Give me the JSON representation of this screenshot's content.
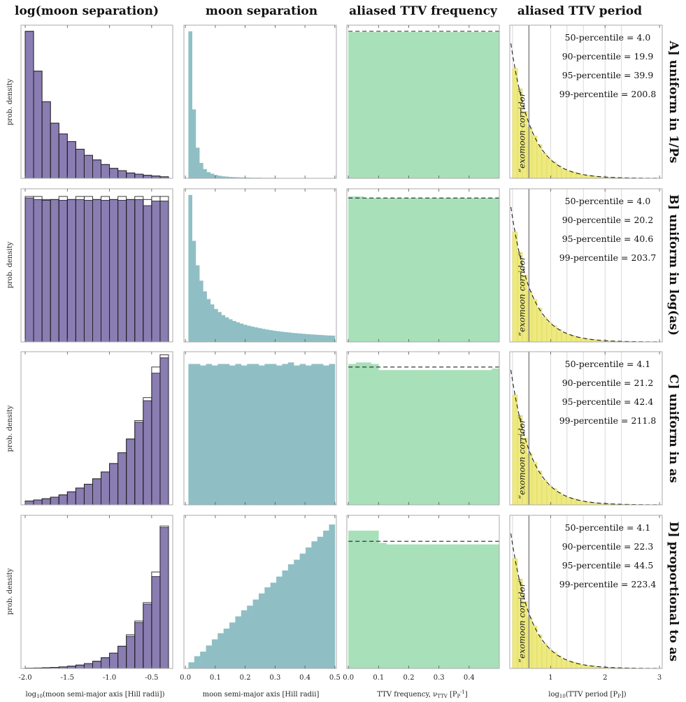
{
  "column_titles": [
    "log(moon separation)",
    "moon separation",
    "aliased TTV frequency",
    "aliased TTV period"
  ],
  "row_labels": [
    "A] uniform in 1/Ps",
    "B] uniform in log(as)",
    "C] uniform in as",
    "D] proportional to as"
  ],
  "ylabel": "prob. density",
  "corridor_label": "“exomoon corridor”",
  "x_axis_labels": [
    "log10(moon semi-major axis [Hill radii])",
    "moon semi-major axis [Hill radii]",
    "TTV frequency, vTTV [PP-1]",
    "log10(TTV period [PP])"
  ],
  "colors": {
    "col1": "#8a7db2",
    "col1_edge": "#2e2742",
    "col2": "#8fbfc4",
    "col3": "#a8e0b9",
    "col4": "#eeea7e",
    "frame": "#aaaaaa",
    "grid": "#d8d8d8"
  },
  "chart_data": [
    {
      "type": "bar",
      "title": "log(moon separation)",
      "xlabel": "log10(moon semi-major axis [Hill radii])",
      "ylabel": "prob. density",
      "xlim": [
        -2.05,
        -0.25
      ],
      "xticks": [
        -2.0,
        -1.5,
        -1.0,
        -0.5
      ],
      "tick_labels": [
        "-2.0",
        "-1.5",
        "-1.0",
        "-0.5"
      ],
      "bin_edges": [
        -2.0,
        -1.9,
        -1.8,
        -1.7,
        -1.6,
        -1.5,
        -1.4,
        -1.3,
        -1.2,
        -1.1,
        -1.0,
        -0.9,
        -0.8,
        -0.7,
        -0.6,
        -0.5,
        -0.4,
        -0.3
      ],
      "series": [
        {
          "name": "A] uniform in 1/Ps",
          "ylim": [
            0,
            1.0
          ],
          "values": [
            0.96,
            0.7,
            0.5,
            0.36,
            0.29,
            0.24,
            0.19,
            0.15,
            0.12,
            0.09,
            0.065,
            0.05,
            0.035,
            0.027,
            0.02,
            0.015,
            0.01
          ],
          "outline": [
            0.96,
            0.7,
            0.5,
            0.36,
            0.29,
            0.24,
            0.19,
            0.15,
            0.12,
            0.09,
            0.065,
            0.05,
            0.035,
            0.027,
            0.02,
            0.015,
            0.01
          ]
        },
        {
          "name": "B] uniform in log(as)",
          "ylim": [
            0,
            1.0
          ],
          "values": [
            0.94,
            0.93,
            0.925,
            0.93,
            0.925,
            0.93,
            0.93,
            0.925,
            0.93,
            0.925,
            0.93,
            0.925,
            0.93,
            0.93,
            0.89,
            0.92,
            0.92
          ],
          "outline": [
            0.95,
            0.95,
            0.93,
            0.93,
            0.95,
            0.93,
            0.95,
            0.95,
            0.93,
            0.95,
            0.93,
            0.95,
            0.93,
            0.95,
            0.93,
            0.95,
            0.95
          ]
        },
        {
          "name": "C] uniform in as",
          "ylim": [
            0,
            1.0
          ],
          "values": [
            0.025,
            0.032,
            0.04,
            0.05,
            0.065,
            0.085,
            0.11,
            0.135,
            0.17,
            0.215,
            0.27,
            0.34,
            0.43,
            0.54,
            0.68,
            0.86,
            0.96
          ],
          "outline": [
            0.025,
            0.032,
            0.04,
            0.05,
            0.065,
            0.085,
            0.11,
            0.135,
            0.17,
            0.215,
            0.27,
            0.34,
            0.43,
            0.55,
            0.7,
            0.9,
            0.98
          ]
        },
        {
          "name": "D] proportional to as",
          "ylim": [
            0,
            1.0
          ],
          "values": [
            0.002,
            0.003,
            0.005,
            0.007,
            0.01,
            0.015,
            0.022,
            0.032,
            0.047,
            0.07,
            0.1,
            0.145,
            0.21,
            0.3,
            0.42,
            0.6,
            0.92
          ],
          "outline": [
            0.002,
            0.003,
            0.005,
            0.007,
            0.01,
            0.015,
            0.022,
            0.032,
            0.047,
            0.07,
            0.1,
            0.145,
            0.22,
            0.31,
            0.43,
            0.63,
            0.93
          ]
        }
      ]
    },
    {
      "type": "bar",
      "title": "moon separation",
      "xlabel": "moon semi-major axis [Hill radii]",
      "xlim": [
        -0.005,
        0.505
      ],
      "xticks": [
        0.0,
        0.1,
        0.2,
        0.3,
        0.4,
        0.5
      ],
      "tick_labels": [
        "0.0",
        "0.1",
        "0.2",
        "0.3",
        "0.4",
        "0.5"
      ],
      "x_start": 0.01,
      "x_end": 0.5,
      "series": [
        {
          "name": "A] uniform in 1/Ps",
          "ylim": [
            0,
            1.0
          ],
          "values": [
            0.96,
            0.45,
            0.2,
            0.1,
            0.06,
            0.04,
            0.03,
            0.022,
            0.017,
            0.013,
            0.011,
            0.009,
            0.008,
            0.007,
            0.006,
            0.005,
            0.005,
            0.004,
            0.004,
            0.004,
            0.003,
            0.003,
            0.003,
            0.003,
            0.002,
            0.002,
            0.002,
            0.002,
            0.002,
            0.002,
            0.002,
            0.002,
            0.002,
            0.002,
            0.002,
            0.002,
            0.002,
            0.002,
            0.002,
            0.002
          ]
        },
        {
          "name": "B] uniform in log(as)",
          "ylim": [
            0,
            1.0
          ],
          "values": [
            0.96,
            0.66,
            0.5,
            0.4,
            0.33,
            0.28,
            0.245,
            0.215,
            0.195,
            0.175,
            0.16,
            0.148,
            0.137,
            0.128,
            0.12,
            0.112,
            0.106,
            0.1,
            0.095,
            0.09,
            0.085,
            0.081,
            0.077,
            0.073,
            0.07,
            0.067,
            0.064,
            0.062,
            0.059,
            0.057,
            0.055,
            0.053,
            0.051,
            0.049,
            0.048,
            0.046,
            0.045,
            0.043,
            0.042,
            0.041
          ]
        },
        {
          "name": "C] uniform in as",
          "ylim": [
            0,
            1.0
          ],
          "values": [
            0.92,
            0.92,
            0.91,
            0.92,
            0.91,
            0.92,
            0.92,
            0.91,
            0.92,
            0.91,
            0.92,
            0.92,
            0.91,
            0.92,
            0.92,
            0.91,
            0.92,
            0.93,
            0.91,
            0.92,
            0.91,
            0.92,
            0.92,
            0.91,
            0.92
          ]
        },
        {
          "name": "D] proportional to as",
          "ylim": [
            0,
            1.0
          ],
          "values": [
            0.04,
            0.08,
            0.11,
            0.15,
            0.19,
            0.23,
            0.26,
            0.3,
            0.34,
            0.38,
            0.41,
            0.45,
            0.49,
            0.53,
            0.56,
            0.6,
            0.64,
            0.68,
            0.71,
            0.75,
            0.79,
            0.83,
            0.86,
            0.9,
            0.94
          ]
        }
      ]
    },
    {
      "type": "bar",
      "title": "aliased TTV frequency",
      "xlabel": "TTV frequency, vTTV [PP-1]",
      "xlim": [
        -0.005,
        0.5
      ],
      "xticks": [
        0.0,
        0.1,
        0.2,
        0.3,
        0.4
      ],
      "tick_labels": [
        "0.0",
        "0.1",
        "0.2",
        "0.3",
        "0.4"
      ],
      "x_start": 0.0,
      "x_end": 0.5,
      "series": [
        {
          "name": "A] uniform in 1/Ps",
          "ylim": [
            0,
            1.0
          ],
          "dashed_level": 0.96,
          "values": [
            0.955,
            0.955,
            0.955,
            0.955,
            0.955,
            0.955,
            0.955,
            0.955,
            0.955,
            0.955,
            0.955,
            0.955,
            0.955,
            0.955,
            0.955,
            0.955,
            0.955,
            0.955,
            0.955,
            0.955
          ]
        },
        {
          "name": "B] uniform in log(as)",
          "ylim": [
            0,
            1.0
          ],
          "dashed_level": 0.94,
          "values": [
            0.95,
            0.95,
            0.94,
            0.94,
            0.94,
            0.94,
            0.94,
            0.94,
            0.94,
            0.94,
            0.94,
            0.94,
            0.94,
            0.94,
            0.94,
            0.94,
            0.94,
            0.94,
            0.94,
            0.94
          ]
        },
        {
          "name": "C] uniform in as",
          "ylim": [
            0,
            1.0
          ],
          "dashed_level": 0.9,
          "values": [
            0.92,
            0.93,
            0.93,
            0.92,
            0.88,
            0.88,
            0.88,
            0.88,
            0.88,
            0.88,
            0.88,
            0.88,
            0.88,
            0.88,
            0.88,
            0.88,
            0.88,
            0.88,
            0.88,
            0.89
          ]
        },
        {
          "name": "D] proportional to as",
          "ylim": [
            0,
            1.0
          ],
          "dashed_level": 0.83,
          "values": [
            0.9,
            0.9,
            0.9,
            0.9,
            0.82,
            0.81,
            0.81,
            0.81,
            0.81,
            0.81,
            0.81,
            0.81,
            0.81,
            0.81,
            0.81,
            0.81,
            0.81,
            0.81,
            0.81,
            0.81
          ]
        }
      ]
    },
    {
      "type": "bar",
      "title": "aliased TTV period",
      "xlabel": "log10(TTV period [PP])",
      "xlim": [
        0.25,
        3.05
      ],
      "xticks": [
        1,
        2,
        3
      ],
      "tick_labels": [
        "1",
        "2",
        "3"
      ],
      "gridlines": [
        0.301,
        0.602,
        1.0,
        1.301,
        1.602,
        2.0,
        2.301
      ],
      "corridor_x": 0.602,
      "x_start": 0.301,
      "x_end": 3.0,
      "dashed_ref": {
        "amplitude": 0.81,
        "x0": 0.301,
        "decay_length": 0.37
      },
      "series": [
        {
          "name": "A] uniform in 1/Ps",
          "ylim": [
            0,
            1.0
          ],
          "percentiles": [
            {
              "label": "50-percentile = 4.0"
            },
            {
              "label": "90-percentile = 19.9"
            },
            {
              "label": "95-percentile = 39.9"
            },
            {
              "label": "99-percentile = 200.8"
            }
          ]
        },
        {
          "name": "B] uniform in log(as)",
          "ylim": [
            0,
            1.0
          ],
          "percentiles": [
            {
              "label": "50-percentile = 4.0"
            },
            {
              "label": "90-percentile = 20.2"
            },
            {
              "label": "95-percentile = 40.6"
            },
            {
              "label": "99-percentile = 203.7"
            }
          ]
        },
        {
          "name": "C] uniform in as",
          "ylim": [
            0,
            1.0
          ],
          "percentiles": [
            {
              "label": "50-percentile = 4.1"
            },
            {
              "label": "90-percentile = 21.2"
            },
            {
              "label": "95-percentile = 42.4"
            },
            {
              "label": "99-percentile = 211.8"
            }
          ]
        },
        {
          "name": "D] proportional to as",
          "ylim": [
            0,
            1.0
          ],
          "percentiles": [
            {
              "label": "50-percentile = 4.1"
            },
            {
              "label": "90-percentile = 22.3"
            },
            {
              "label": "95-percentile = 44.5"
            },
            {
              "label": "99-percentile = 223.4"
            }
          ]
        }
      ]
    }
  ]
}
